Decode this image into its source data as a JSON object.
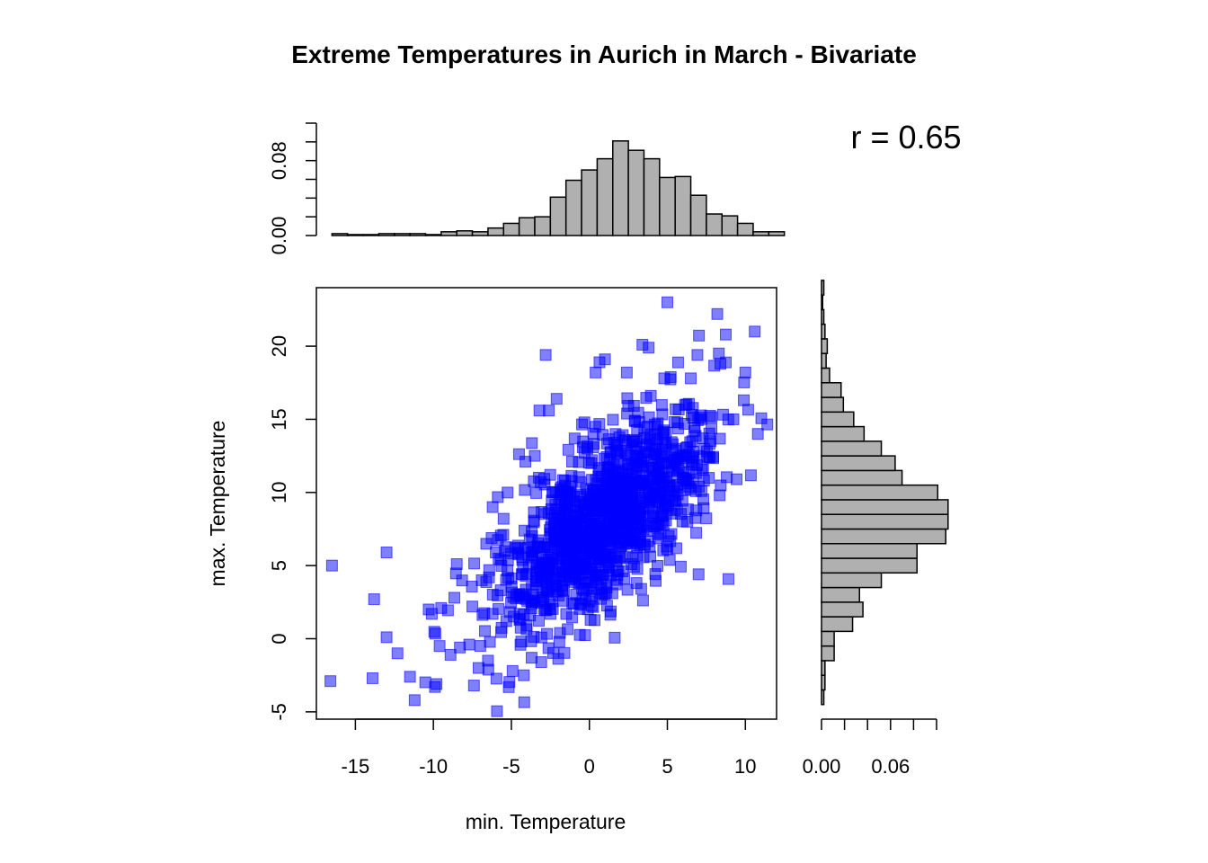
{
  "chart_data": {
    "type": "scatter",
    "title": "Extreme Temperatures in Aurich in March - Bivariate",
    "xlabel": "min. Temperature",
    "ylabel": "max. Temperature",
    "annotation": "r = 0.65",
    "xlim": [
      -17.5,
      12
    ],
    "ylim": [
      -5.5,
      24
    ],
    "x_ticks": [
      -15,
      -10,
      -5,
      0,
      5,
      10
    ],
    "y_ticks": [
      -5,
      0,
      5,
      10,
      15,
      20
    ],
    "marker_color": "#0000ff",
    "bar_color": "#b0b0b0",
    "correlation": 0.65,
    "cloud": {
      "center_x": 0.9,
      "center_y": 8.2,
      "sd_x": 3.4,
      "sd_y": 3.8,
      "n": 1200
    },
    "points": [
      {
        "x": -16.5,
        "y": 5.0
      },
      {
        "x": -16.6,
        "y": -2.9
      },
      {
        "x": -13.9,
        "y": -2.7
      },
      {
        "x": -13.0,
        "y": 5.9
      },
      {
        "x": -13.0,
        "y": 0.1
      },
      {
        "x": -13.8,
        "y": 2.7
      },
      {
        "x": -11.5,
        "y": -2.6
      },
      {
        "x": -11.2,
        "y": -4.2
      },
      {
        "x": -12.3,
        "y": -1.0
      },
      {
        "x": -10.3,
        "y": 2.0
      },
      {
        "x": -10.1,
        "y": 1.7
      },
      {
        "x": -9.5,
        "y": 2.1
      },
      {
        "x": -9.8,
        "y": -3.1
      },
      {
        "x": -9.9,
        "y": -3.3
      },
      {
        "x": -9.6,
        "y": -0.5
      },
      {
        "x": -8.9,
        "y": -1.1
      },
      {
        "x": -8.3,
        "y": -0.6
      },
      {
        "x": -8.5,
        "y": 5.1
      },
      {
        "x": -7.7,
        "y": -0.4
      },
      {
        "x": -7.4,
        "y": -3.2
      },
      {
        "x": -7.1,
        "y": -2.0
      },
      {
        "x": -6.5,
        "y": -1.5
      },
      {
        "x": -6.2,
        "y": 1.7
      },
      {
        "x": -7.5,
        "y": 2.2
      },
      {
        "x": -6.9,
        "y": 4.0
      },
      {
        "x": -6.0,
        "y": 5.9
      },
      {
        "x": -6.2,
        "y": 9.0
      },
      {
        "x": -5.5,
        "y": 8.2
      },
      {
        "x": -4.1,
        "y": 12.1
      },
      {
        "x": -3.5,
        "y": 12.5
      },
      {
        "x": -3.2,
        "y": 15.6
      },
      {
        "x": -2.8,
        "y": 19.4
      },
      {
        "x": -2.1,
        "y": 16.4
      },
      {
        "x": -2.6,
        "y": 15.6
      },
      {
        "x": -4.2,
        "y": -2.5
      },
      {
        "x": -3.7,
        "y": -1.3
      },
      {
        "x": 5.0,
        "y": 23.0
      },
      {
        "x": 8.2,
        "y": 22.2
      },
      {
        "x": 10.6,
        "y": 21.0
      },
      {
        "x": 8.3,
        "y": 19.5
      },
      {
        "x": 8.4,
        "y": 18.8
      },
      {
        "x": 10.0,
        "y": 18.2
      },
      {
        "x": 9.9,
        "y": 16.3
      },
      {
        "x": 10.8,
        "y": 14.0
      },
      {
        "x": 3.8,
        "y": 19.9
      },
      {
        "x": 3.4,
        "y": 20.1
      },
      {
        "x": 2.4,
        "y": 18.2
      },
      {
        "x": 1.0,
        "y": 19.1
      },
      {
        "x": 0.4,
        "y": 18.2
      },
      {
        "x": 6.5,
        "y": 17.8
      },
      {
        "x": 4.8,
        "y": 17.8
      }
    ],
    "top_hist": {
      "bin_start": -16.5,
      "bin_width": 1.0,
      "density": [
        0.002,
        0.001,
        0.001,
        0.002,
        0.002,
        0.002,
        0.001,
        0.004,
        0.005,
        0.004,
        0.008,
        0.013,
        0.019,
        0.02,
        0.041,
        0.059,
        0.07,
        0.082,
        0.101,
        0.091,
        0.082,
        0.062,
        0.063,
        0.043,
        0.023,
        0.021,
        0.013,
        0.004,
        0.004
      ],
      "tick_values": [
        0.0,
        0.02,
        0.04,
        0.06,
        0.08,
        0.1,
        0.12
      ],
      "tick_labels": [
        "0.00",
        "0.08"
      ],
      "tick_label_values": [
        0.0,
        0.08
      ]
    },
    "right_hist": {
      "bin_start": -4.5,
      "bin_width": 1.0,
      "density": [
        0.002,
        0.003,
        0.003,
        0.011,
        0.011,
        0.027,
        0.036,
        0.033,
        0.052,
        0.083,
        0.083,
        0.108,
        0.11,
        0.11,
        0.101,
        0.07,
        0.064,
        0.052,
        0.037,
        0.028,
        0.019,
        0.017,
        0.007,
        0.004,
        0.005,
        0.003,
        0.002,
        0.001,
        0.002
      ],
      "tick_values": [
        0.0,
        0.02,
        0.04,
        0.06,
        0.08,
        0.1
      ],
      "tick_labels": [
        "0.00",
        "0.06"
      ],
      "tick_label_values": [
        0.0,
        0.06
      ]
    }
  }
}
